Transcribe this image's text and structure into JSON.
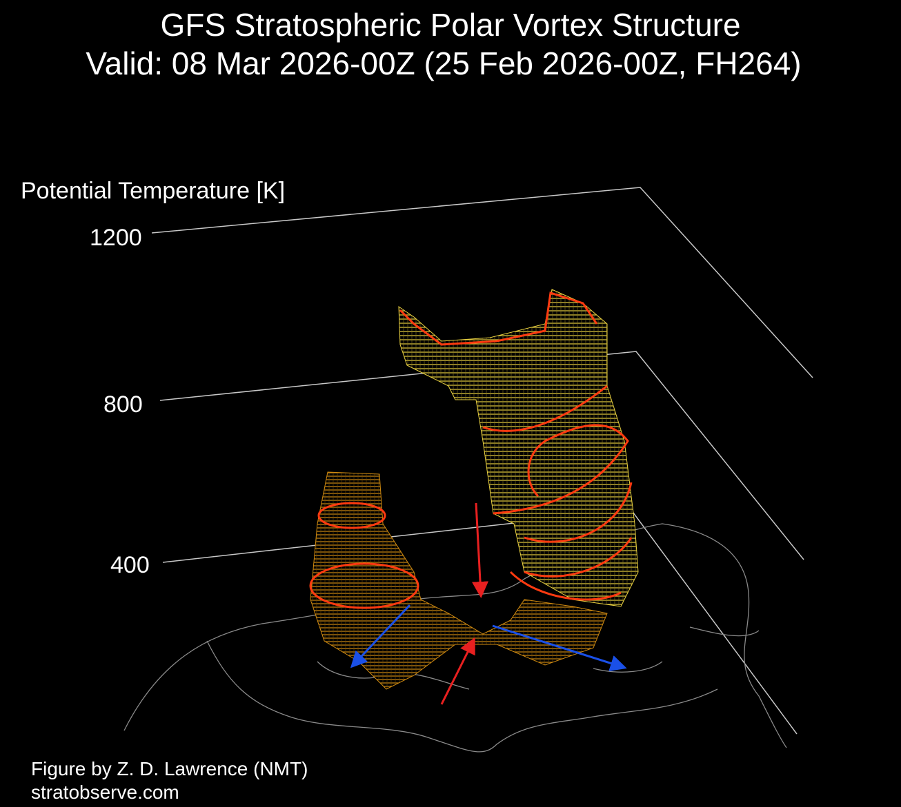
{
  "header": {
    "title": "GFS Stratospheric Polar Vortex Structure",
    "subtitle": "Valid: 08 Mar 2026-00Z  (25 Feb 2026-00Z, FH264)"
  },
  "chart_data": {
    "type": "3d-isosurface",
    "zlabel": "Potential Temperature [K]",
    "z_ticks": [
      "1200",
      "800",
      "400"
    ],
    "colors": {
      "background": "#000000",
      "isosurface_upper": "#e8d040",
      "isosurface_lower": "#d08a10",
      "contours": "#ff3a10",
      "red_arrows": "#e82020",
      "blue_arrows": "#1a50e8",
      "coastlines": "#8a8a8a",
      "axes": "#c8c8c8"
    }
  },
  "footer": {
    "credit": "Figure by Z. D. Lawrence (NMT)",
    "site": "stratobserve.com"
  }
}
